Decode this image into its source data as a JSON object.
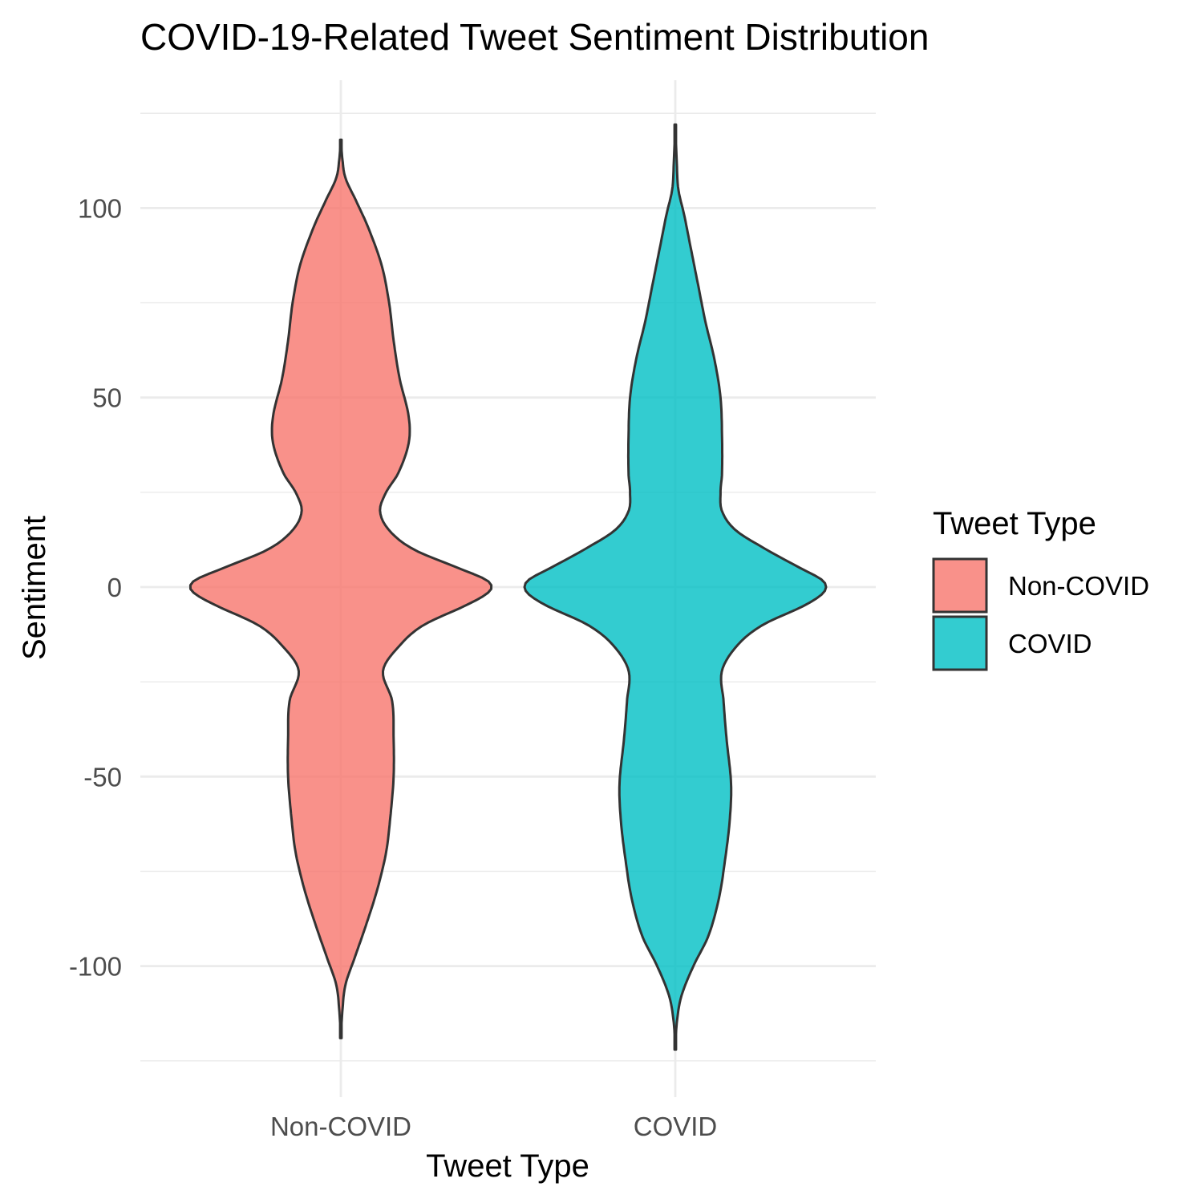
{
  "chart_data": {
    "type": "violin",
    "title": "COVID-19-Related Tweet Sentiment Distribution",
    "xlabel": "Tweet Type",
    "ylabel": "Sentiment",
    "categories": [
      "Non-COVID",
      "COVID"
    ],
    "ylim": [
      -125,
      125
    ],
    "y_ticks": [
      -100,
      -50,
      0,
      50,
      100
    ],
    "y_tick_labels": [
      "-100",
      "-50",
      "0",
      "50",
      "100"
    ],
    "grid": true,
    "legend": {
      "title": "Tweet Type",
      "position": "right",
      "entries": [
        {
          "label": "Non-COVID",
          "color": "#F8766D"
        },
        {
          "label": "COVID",
          "color": "#00BFC4"
        }
      ]
    },
    "series": [
      {
        "category": "Non-COVID",
        "color": "#F8766D",
        "y_range": [
          -119,
          118
        ],
        "density_profile": [
          [
            -119,
            0.0
          ],
          [
            -112,
            0.01
          ],
          [
            -105,
            0.03
          ],
          [
            -98,
            0.09
          ],
          [
            -90,
            0.16
          ],
          [
            -80,
            0.24
          ],
          [
            -70,
            0.3
          ],
          [
            -60,
            0.33
          ],
          [
            -50,
            0.35
          ],
          [
            -40,
            0.35
          ],
          [
            -30,
            0.34
          ],
          [
            -22,
            0.28
          ],
          [
            -15,
            0.4
          ],
          [
            -10,
            0.55
          ],
          [
            -5,
            0.82
          ],
          [
            -2,
            0.96
          ],
          [
            0,
            1.0
          ],
          [
            2,
            0.96
          ],
          [
            5,
            0.78
          ],
          [
            10,
            0.48
          ],
          [
            15,
            0.32
          ],
          [
            20,
            0.26
          ],
          [
            25,
            0.3
          ],
          [
            30,
            0.38
          ],
          [
            38,
            0.45
          ],
          [
            45,
            0.45
          ],
          [
            55,
            0.39
          ],
          [
            65,
            0.35
          ],
          [
            75,
            0.32
          ],
          [
            85,
            0.27
          ],
          [
            95,
            0.18
          ],
          [
            102,
            0.1
          ],
          [
            108,
            0.03
          ],
          [
            113,
            0.01
          ],
          [
            118,
            0.0
          ]
        ]
      },
      {
        "category": "COVID",
        "color": "#00BFC4",
        "y_range": [
          -122,
          122
        ],
        "density_profile": [
          [
            -122,
            0.0
          ],
          [
            -115,
            0.01
          ],
          [
            -108,
            0.04
          ],
          [
            -100,
            0.12
          ],
          [
            -92,
            0.22
          ],
          [
            -82,
            0.29
          ],
          [
            -72,
            0.33
          ],
          [
            -62,
            0.36
          ],
          [
            -52,
            0.37
          ],
          [
            -40,
            0.34
          ],
          [
            -30,
            0.32
          ],
          [
            -22,
            0.31
          ],
          [
            -15,
            0.42
          ],
          [
            -10,
            0.58
          ],
          [
            -5,
            0.85
          ],
          [
            -2,
            0.97
          ],
          [
            0,
            1.0
          ],
          [
            2,
            0.97
          ],
          [
            5,
            0.83
          ],
          [
            10,
            0.6
          ],
          [
            15,
            0.4
          ],
          [
            20,
            0.31
          ],
          [
            25,
            0.3
          ],
          [
            30,
            0.31
          ],
          [
            40,
            0.31
          ],
          [
            50,
            0.3
          ],
          [
            60,
            0.26
          ],
          [
            70,
            0.2
          ],
          [
            80,
            0.15
          ],
          [
            90,
            0.1
          ],
          [
            98,
            0.06
          ],
          [
            105,
            0.02
          ],
          [
            112,
            0.01
          ],
          [
            122,
            0.0
          ]
        ]
      }
    ]
  }
}
